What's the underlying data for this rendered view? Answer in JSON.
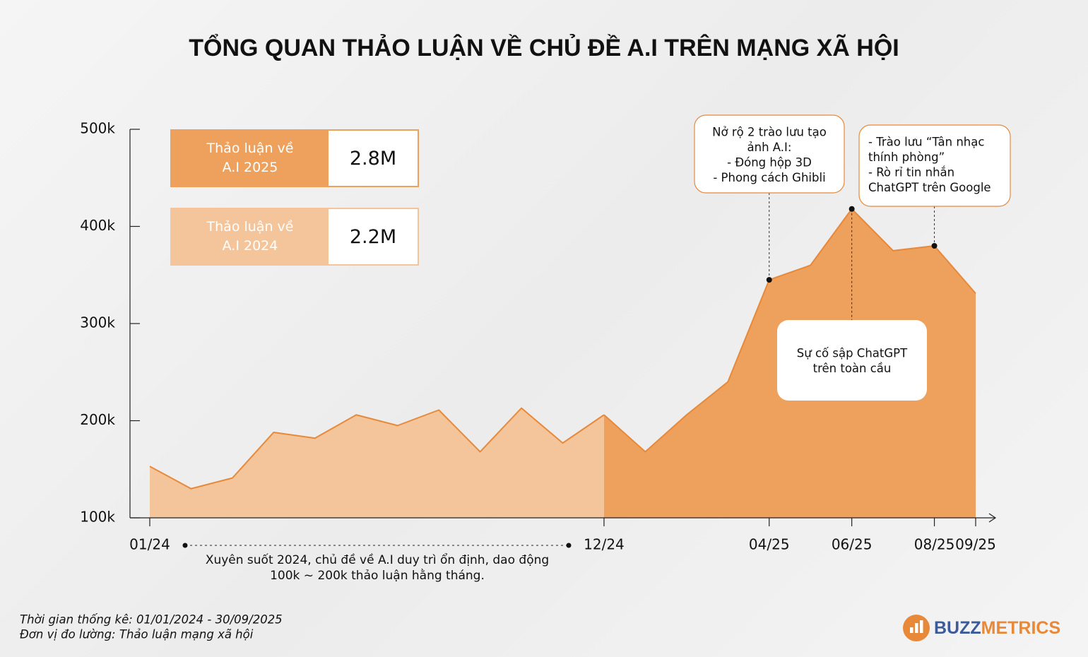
{
  "chart_data": {
    "type": "area",
    "title": "TỔNG QUAN THẢO LUẬN VỀ CHỦ ĐỀ A.I TRÊN MẠNG XÃ HỘI",
    "categories": [
      "01/24",
      null,
      null,
      null,
      null,
      null,
      null,
      null,
      null,
      null,
      null,
      "12/24",
      null,
      null,
      null,
      "04/25",
      null,
      "06/25",
      null,
      "08/25",
      "09/25"
    ],
    "series": [
      {
        "name": "Thảo luận về A.I 2025",
        "color": "#eda15c",
        "total": 2800000,
        "total_label": "2.8M",
        "values": [
          null,
          null,
          null,
          null,
          null,
          null,
          null,
          null,
          null,
          null,
          null,
          206000,
          168000,
          206000,
          240000,
          345000,
          360000,
          418000,
          375000,
          380000,
          331000
        ]
      },
      {
        "name": "Thảo luận về A.I 2024",
        "color": "#f4c59a",
        "total": 2200000,
        "total_label": "2.2M",
        "values": [
          153000,
          130000,
          141000,
          188000,
          182000,
          206000,
          195000,
          211000,
          168000,
          213000,
          177000,
          206000,
          null,
          null,
          null,
          null,
          null,
          null,
          null,
          null,
          null
        ]
      }
    ],
    "line_color": "#e8893a",
    "ylim": [
      100000,
      500000
    ],
    "yticks": [
      {
        "value": 100000,
        "label": "100k"
      },
      {
        "value": 200000,
        "label": "200k"
      },
      {
        "value": 300000,
        "label": "300k"
      },
      {
        "value": 400000,
        "label": "400k"
      },
      {
        "value": 500000,
        "label": "500k"
      }
    ],
    "annotations": [
      {
        "lines": [
          "Nở rộ 2 trào lưu tạo",
          "ảnh A.I:",
          "- Đóng hộp 3D",
          "- Phong cách Ghibli"
        ]
      },
      {
        "lines": [
          "Sự cố sập ChatGPT",
          "trên toàn cầu"
        ]
      },
      {
        "lines": [
          "- Trào lưu “Tân nhạc",
          "thính phòng”",
          "- Rò rỉ tin nhắn",
          "ChatGPT trên Google"
        ]
      }
    ],
    "note": [
      "Xuyên suốt 2024, chủ đề về A.I duy trì ổn định, dao động",
      "100k ~ 200k thảo luận hằng tháng."
    ],
    "footnotes": [
      "Thời gian thống kê: 01/01/2024 - 30/09/2025",
      "Đơn vị đo lường: Thảo luận mạng xã hội"
    ],
    "brand": [
      "BUZZ",
      "METRICS"
    ]
  }
}
